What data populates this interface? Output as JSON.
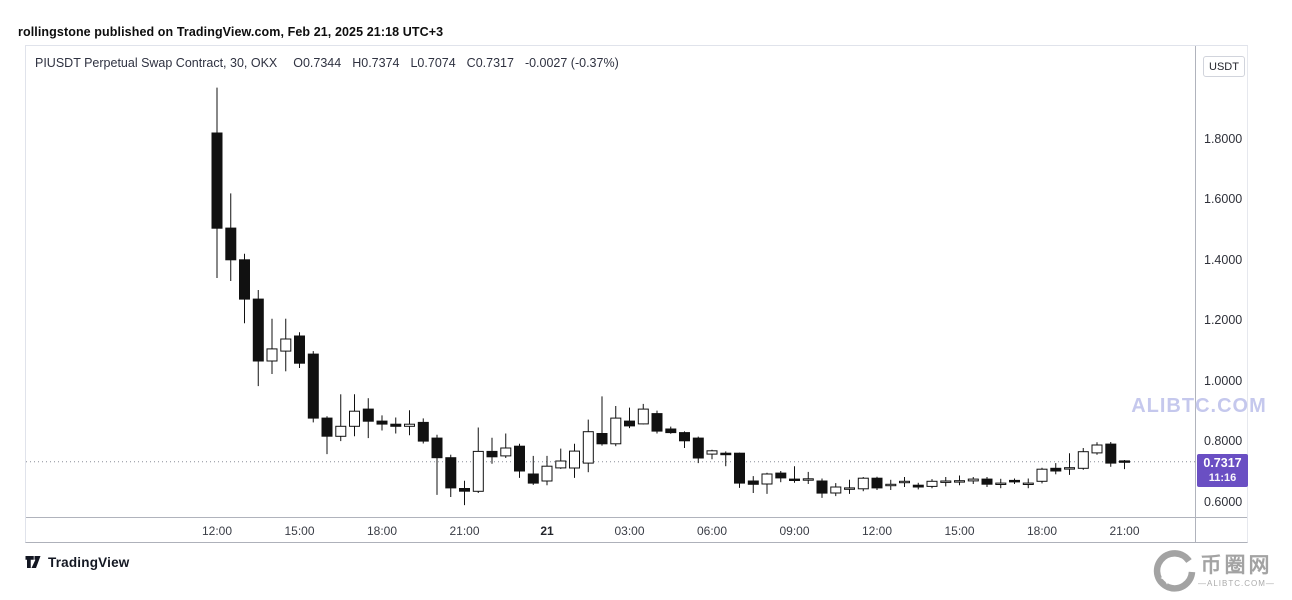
{
  "attribution": "rollingstone published on TradingView.com, Feb 21, 2025 21:18 UTC+3",
  "legend": {
    "symbol_title": "PIUSDT Perpetual Swap Contract, 30, OKX",
    "open": "O0.7344",
    "high": "H0.7374",
    "low": "L0.7074",
    "close": "C0.7317",
    "change": "-0.0027 (-0.37%)"
  },
  "price_axis": {
    "currency": "USDT",
    "badge": {
      "price": "0.7317",
      "countdown": "11:16",
      "color": "#6a4fc3"
    }
  },
  "watermark": {
    "text": "ALIBTC.COM",
    "color": "rgba(150,155,222,0.55)"
  },
  "footer": {
    "tradingview_label": "TradingView",
    "site_name": "币圈网",
    "site_domain": "—ALIBTC.COM—"
  },
  "chart_data": {
    "type": "candlestick",
    "title": "PIUSDT Perpetual Swap Contract, 30, OKX",
    "exchange": "OKX",
    "interval_minutes": 30,
    "currency": "USDT",
    "last_candle": {
      "open": 0.7344,
      "high": 0.7374,
      "low": 0.7074,
      "close": 0.7317,
      "change": -0.0027,
      "change_pct": -0.37
    },
    "price_line": 0.7317,
    "y_ticks": [
      1.8,
      1.6,
      1.4,
      1.2,
      1.0,
      0.8,
      0.6
    ],
    "y_range_visible": [
      0.55,
      1.99
    ],
    "grid": "off",
    "up_style": {
      "fill": "#ffffff",
      "stroke": "#111111"
    },
    "down_style": {
      "fill": "#111111",
      "stroke": "#111111"
    },
    "price_line_color": "#8a8e98",
    "x_labels": [
      {
        "index": 0,
        "text": "12:00"
      },
      {
        "index": 6,
        "text": "15:00"
      },
      {
        "index": 12,
        "text": "18:00"
      },
      {
        "index": 18,
        "text": "21:00"
      },
      {
        "index": 24,
        "text": "21",
        "is_date": true
      },
      {
        "index": 30,
        "text": "03:00"
      },
      {
        "index": 36,
        "text": "06:00"
      },
      {
        "index": 42,
        "text": "09:00"
      },
      {
        "index": 48,
        "text": "12:00"
      },
      {
        "index": 54,
        "text": "15:00"
      },
      {
        "index": 60,
        "text": "18:00"
      },
      {
        "index": 66,
        "text": "21:00"
      }
    ],
    "candles": [
      [
        1.82,
        1.97,
        1.34,
        1.505
      ],
      [
        1.505,
        1.62,
        1.33,
        1.4
      ],
      [
        1.4,
        1.42,
        1.19,
        1.27
      ],
      [
        1.27,
        1.3,
        0.982,
        1.065
      ],
      [
        1.065,
        1.205,
        1.022,
        1.105
      ],
      [
        1.098,
        1.205,
        1.031,
        1.138
      ],
      [
        1.148,
        1.16,
        1.042,
        1.058
      ],
      [
        1.088,
        1.098,
        0.862,
        0.876
      ],
      [
        0.876,
        0.882,
        0.757,
        0.816
      ],
      [
        0.816,
        0.955,
        0.8,
        0.849
      ],
      [
        0.849,
        0.955,
        0.816,
        0.899
      ],
      [
        0.906,
        0.942,
        0.81,
        0.866
      ],
      [
        0.866,
        0.885,
        0.835,
        0.856
      ],
      [
        0.856,
        0.878,
        0.825,
        0.849
      ],
      [
        0.849,
        0.902,
        0.819,
        0.856
      ],
      [
        0.862,
        0.875,
        0.792,
        0.8
      ],
      [
        0.81,
        0.821,
        0.622,
        0.745
      ],
      [
        0.745,
        0.755,
        0.615,
        0.645
      ],
      [
        0.643,
        0.669,
        0.588,
        0.634
      ],
      [
        0.634,
        0.845,
        0.628,
        0.766
      ],
      [
        0.766,
        0.811,
        0.725,
        0.748
      ],
      [
        0.751,
        0.825,
        0.744,
        0.777
      ],
      [
        0.783,
        0.791,
        0.678,
        0.701
      ],
      [
        0.691,
        0.751,
        0.655,
        0.661
      ],
      [
        0.668,
        0.751,
        0.654,
        0.717
      ],
      [
        0.711,
        0.775,
        0.708,
        0.734
      ],
      [
        0.711,
        0.791,
        0.678,
        0.767
      ],
      [
        0.727,
        0.871,
        0.697,
        0.831
      ],
      [
        0.825,
        0.948,
        0.785,
        0.791
      ],
      [
        0.791,
        0.916,
        0.783,
        0.876
      ],
      [
        0.866,
        0.911,
        0.843,
        0.85
      ],
      [
        0.857,
        0.923,
        0.855,
        0.906
      ],
      [
        0.891,
        0.901,
        0.825,
        0.833
      ],
      [
        0.84,
        0.848,
        0.824,
        0.828
      ],
      [
        0.828,
        0.832,
        0.777,
        0.801
      ],
      [
        0.81,
        0.815,
        0.727,
        0.744
      ],
      [
        0.757,
        0.771,
        0.74,
        0.768
      ],
      [
        0.76,
        0.766,
        0.717,
        0.755
      ],
      [
        0.76,
        0.762,
        0.645,
        0.661
      ],
      [
        0.668,
        0.684,
        0.628,
        0.657
      ],
      [
        0.658,
        0.695,
        0.625,
        0.691
      ],
      [
        0.694,
        0.701,
        0.664,
        0.678
      ],
      [
        0.674,
        0.717,
        0.662,
        0.673
      ],
      [
        0.673,
        0.698,
        0.658,
        0.675
      ],
      [
        0.668,
        0.676,
        0.612,
        0.628
      ],
      [
        0.628,
        0.661,
        0.618,
        0.648
      ],
      [
        0.645,
        0.672,
        0.625,
        0.645
      ],
      [
        0.642,
        0.681,
        0.634,
        0.677
      ],
      [
        0.677,
        0.682,
        0.638,
        0.645
      ],
      [
        0.655,
        0.672,
        0.638,
        0.657
      ],
      [
        0.665,
        0.681,
        0.648,
        0.667
      ],
      [
        0.654,
        0.662,
        0.64,
        0.648
      ],
      [
        0.65,
        0.674,
        0.644,
        0.667
      ],
      [
        0.667,
        0.681,
        0.65,
        0.668
      ],
      [
        0.668,
        0.686,
        0.654,
        0.669
      ],
      [
        0.668,
        0.681,
        0.658,
        0.674
      ],
      [
        0.674,
        0.681,
        0.648,
        0.657
      ],
      [
        0.66,
        0.675,
        0.644,
        0.661
      ],
      [
        0.67,
        0.676,
        0.658,
        0.665
      ],
      [
        0.661,
        0.676,
        0.644,
        0.661
      ],
      [
        0.667,
        0.712,
        0.66,
        0.707
      ],
      [
        0.71,
        0.727,
        0.69,
        0.701
      ],
      [
        0.708,
        0.76,
        0.688,
        0.712
      ],
      [
        0.71,
        0.777,
        0.705,
        0.765
      ],
      [
        0.761,
        0.796,
        0.755,
        0.787
      ],
      [
        0.79,
        0.797,
        0.715,
        0.727
      ],
      [
        0.7344,
        0.7374,
        0.7074,
        0.7317
      ]
    ]
  }
}
